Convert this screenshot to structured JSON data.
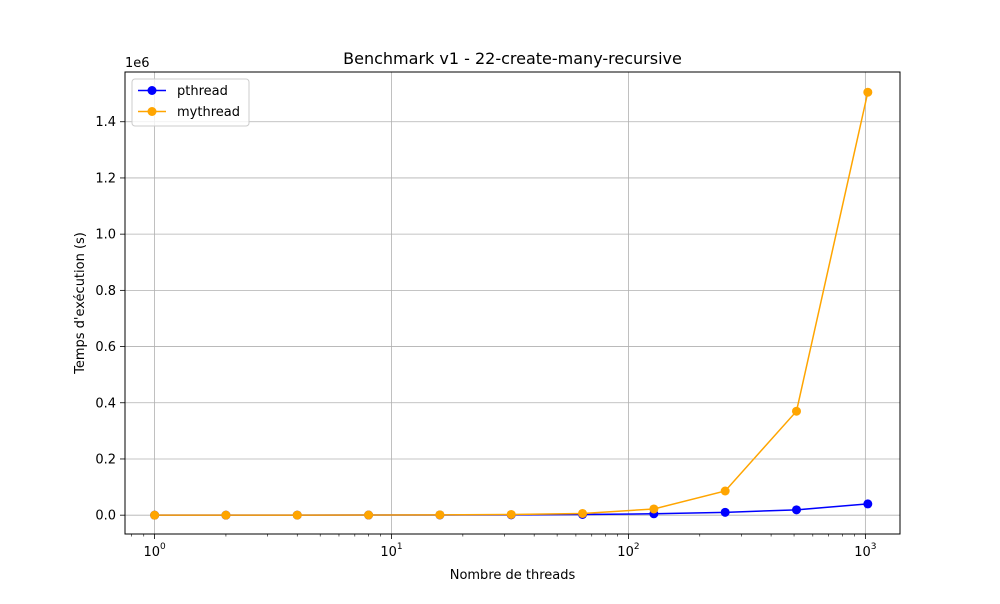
{
  "chart_data": {
    "type": "line",
    "title": "Benchmark v1 - 22-create-many-recursive",
    "xlabel": "Nombre de threads",
    "ylabel": "Temps d'exécution (s)",
    "x_scale": "log",
    "xlim": [
      0.75,
      1400
    ],
    "ylim": [
      -67000,
      1577000
    ],
    "y_offset_label": "1e6",
    "x_ticks": [
      {
        "value": 1,
        "base": "10",
        "exp": "0"
      },
      {
        "value": 10,
        "base": "10",
        "exp": "1"
      },
      {
        "value": 100,
        "base": "10",
        "exp": "2"
      },
      {
        "value": 1000,
        "base": "10",
        "exp": "3"
      }
    ],
    "y_ticks": [
      {
        "value": 0,
        "label": "0.0"
      },
      {
        "value": 200000,
        "label": "0.2"
      },
      {
        "value": 400000,
        "label": "0.4"
      },
      {
        "value": 600000,
        "label": "0.6"
      },
      {
        "value": 800000,
        "label": "0.8"
      },
      {
        "value": 1000000,
        "label": "1.0"
      },
      {
        "value": 1200000,
        "label": "1.2"
      },
      {
        "value": 1400000,
        "label": "1.4"
      }
    ],
    "grid": true,
    "legend": "upper left",
    "x": [
      1,
      2,
      4,
      8,
      16,
      32,
      64,
      128,
      256,
      512,
      1024
    ],
    "series": [
      {
        "name": "pthread",
        "color": "#0000ff",
        "values": [
          50,
          100,
          200,
          400,
          700,
          1200,
          2500,
          5000,
          10000,
          19000,
          40000
        ]
      },
      {
        "name": "mythread",
        "color": "#ffa500",
        "values": [
          80,
          150,
          300,
          600,
          1200,
          2500,
          6000,
          22000,
          86000,
          370000,
          1505000
        ]
      }
    ]
  }
}
